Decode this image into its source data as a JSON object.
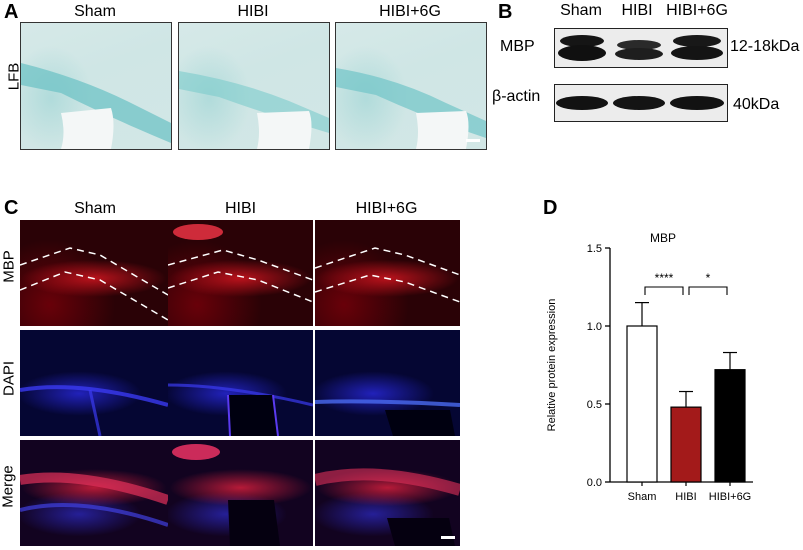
{
  "panelA": {
    "letter": "A",
    "row_label": "LFB",
    "headers": [
      "Sham",
      "HIBI",
      "HIBI+6G"
    ]
  },
  "panelB": {
    "letter": "B",
    "headers": [
      "Sham",
      "HIBI",
      "HIBI+6G"
    ],
    "bands": [
      {
        "label": "MBP",
        "size": "12-18kDa"
      },
      {
        "label": "β-actin",
        "size": "40kDa"
      }
    ]
  },
  "panelC": {
    "letter": "C",
    "headers": [
      "Sham",
      "HIBI",
      "HIBI+6G"
    ],
    "row_labels": [
      "MBP",
      "DAPI",
      "Merge"
    ],
    "colors": {
      "mbp": "#c0101e",
      "dapi": "#2a2ad8"
    }
  },
  "panelD": {
    "letter": "D",
    "chart_data": {
      "type": "bar",
      "title": "MBP",
      "ylabel": "Relative protein expression",
      "xlabel": "",
      "categories": [
        "Sham",
        "HIBI",
        "HIBI+6G"
      ],
      "values": [
        1.0,
        0.48,
        0.72
      ],
      "errors": [
        0.15,
        0.1,
        0.11
      ],
      "colors": [
        "#ffffff",
        "#a31a1a",
        "#000000"
      ],
      "ylim": [
        0,
        1.5
      ],
      "yticks": [
        "0.0",
        "0.5",
        "1.0",
        "1.5"
      ],
      "significance": [
        {
          "from": 0,
          "to": 1,
          "label": "****"
        },
        {
          "from": 1,
          "to": 2,
          "label": "*"
        }
      ]
    }
  }
}
